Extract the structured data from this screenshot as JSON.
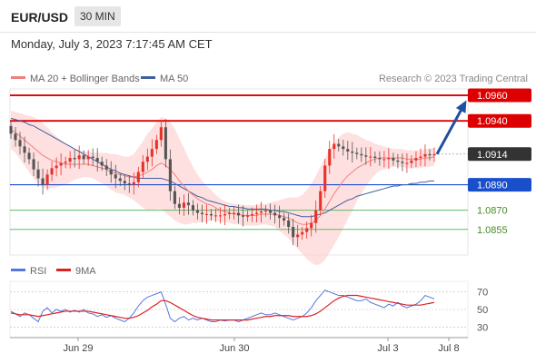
{
  "header": {
    "pair": "EUR/USD",
    "interval": "30 MIN",
    "datetime": "Monday, July 3, 2023 7:17:45 AM CET"
  },
  "legend": {
    "ma20": "MA 20 + Bollinger Bands",
    "ma50": "MA 50",
    "credit": "Research © 2023 Trading Central"
  },
  "colors": {
    "bull": "#e8312a",
    "bear": "#555555",
    "resistance": "#dd0000",
    "support_strong": "#1a4fcc",
    "support_weak": "#4caf50",
    "ma20": "#f08080",
    "ma50": "#4060a0",
    "bands": "#fdd6d6",
    "arrow": "#1f4fa0",
    "rsi": "#5577dd",
    "rsi_ma": "#dd2222"
  },
  "chart_data": [
    {
      "type": "candlestick",
      "x_axis": [
        "Jun 29",
        "Jun 30",
        "Jul 3",
        "Jul 8"
      ],
      "y_range": [
        1.0835,
        1.0965
      ],
      "current_price": "1.0914",
      "levels": [
        {
          "label": "1.0960",
          "value": 1.096,
          "kind": "resistance"
        },
        {
          "label": "1.0940",
          "value": 1.094,
          "kind": "resistance"
        },
        {
          "label": "1.0890",
          "value": 1.089,
          "kind": "support_strong"
        },
        {
          "label": "1.0870",
          "value": 1.087,
          "kind": "support_weak"
        },
        {
          "label": "1.0855",
          "value": 1.0855,
          "kind": "support_weak"
        }
      ],
      "closes": [
        1.093,
        1.0925,
        1.092,
        1.0915,
        1.091,
        1.0902,
        1.0895,
        1.089,
        1.0898,
        1.0903,
        1.0905,
        1.0907,
        1.0908,
        1.0911,
        1.091,
        1.0913,
        1.091,
        1.0912,
        1.0911,
        1.0908,
        1.0905,
        1.0902,
        1.0898,
        1.0895,
        1.0893,
        1.0891,
        1.089,
        1.0892,
        1.09,
        1.0908,
        1.0912,
        1.0918,
        1.0925,
        1.0935,
        1.091,
        1.0885,
        1.0875,
        1.0872,
        1.0876,
        1.0874,
        1.087,
        1.0868,
        1.0867,
        1.0867,
        1.0866,
        1.0866,
        1.0866,
        1.0867,
        1.0868,
        1.0868,
        1.0866,
        1.0865,
        1.0866,
        1.0867,
        1.0868,
        1.0869,
        1.087,
        1.0868,
        1.0866,
        1.0864,
        1.0862,
        1.0857,
        1.0849,
        1.0851,
        1.0853,
        1.0856,
        1.086,
        1.087,
        1.0885,
        1.0905,
        1.0918,
        1.0922,
        1.092,
        1.0918,
        1.0916,
        1.0915,
        1.0914,
        1.0913,
        1.0912,
        1.0912,
        1.0911,
        1.091,
        1.091,
        1.0911,
        1.0909,
        1.0908,
        1.0907,
        1.0907,
        1.0909,
        1.0911,
        1.0912,
        1.0914,
        1.0913,
        1.0914
      ],
      "ma20": [
        1.0933,
        1.0931,
        1.0928,
        1.0925,
        1.0922,
        1.0919,
        1.0916,
        1.0913,
        1.0911,
        1.0909,
        1.0908,
        1.0907,
        1.0906,
        1.0906,
        1.0906,
        1.0906,
        1.0906,
        1.0906,
        1.0905,
        1.0904,
        1.0903,
        1.0902,
        1.09,
        1.0899,
        1.0898,
        1.0897,
        1.0896,
        1.0896,
        1.0897,
        1.0898,
        1.09,
        1.0902,
        1.0905,
        1.0907,
        1.0905,
        1.0902,
        1.0898,
        1.0893,
        1.0889,
        1.0885,
        1.0882,
        1.0879,
        1.0877,
        1.0875,
        1.0874,
        1.0872,
        1.087,
        1.0869,
        1.0868,
        1.0867,
        1.0867,
        1.0866,
        1.0866,
        1.0866,
        1.0866,
        1.0867,
        1.0867,
        1.0867,
        1.0867,
        1.0866,
        1.0865,
        1.0864,
        1.0862,
        1.086,
        1.0859,
        1.0859,
        1.086,
        1.0862,
        1.0866,
        1.0871,
        1.0877,
        1.0883,
        1.0888,
        1.0893,
        1.0897,
        1.09,
        1.0903,
        1.0905,
        1.0907,
        1.0909,
        1.091,
        1.0911,
        1.0911,
        1.0911,
        1.0911,
        1.0911,
        1.0911,
        1.091,
        1.091,
        1.091,
        1.091,
        1.0911,
        1.0911,
        1.0912
      ],
      "ma50": [
        1.0942,
        1.0941,
        1.094,
        1.0939,
        1.0937,
        1.0936,
        1.0934,
        1.0932,
        1.093,
        1.0928,
        1.0926,
        1.0924,
        1.0922,
        1.092,
        1.0918,
        1.0916,
        1.0914,
        1.0912,
        1.091,
        1.0908,
        1.0906,
        1.0904,
        1.0902,
        1.0901,
        1.0899,
        1.0898,
        1.0897,
        1.0896,
        1.0895,
        1.0895,
        1.0895,
        1.0895,
        1.0895,
        1.0895,
        1.0894,
        1.0893,
        1.0891,
        1.0889,
        1.0887,
        1.0885,
        1.0883,
        1.0881,
        1.088,
        1.0878,
        1.0877,
        1.0876,
        1.0875,
        1.0874,
        1.0873,
        1.0873,
        1.0872,
        1.0872,
        1.0871,
        1.0871,
        1.0871,
        1.0871,
        1.0871,
        1.087,
        1.087,
        1.0869,
        1.0869,
        1.0868,
        1.0867,
        1.0866,
        1.0865,
        1.0865,
        1.0865,
        1.0866,
        1.0867,
        1.0868,
        1.087,
        1.0872,
        1.0874,
        1.0876,
        1.0878,
        1.0879,
        1.0881,
        1.0882,
        1.0883,
        1.0884,
        1.0885,
        1.0886,
        1.0887,
        1.0888,
        1.0889,
        1.0889,
        1.089,
        1.089,
        1.0891,
        1.0891,
        1.0892,
        1.0892,
        1.0893,
        1.0893
      ],
      "band_width": [
        0.0015,
        0.0016,
        0.0018,
        0.002,
        0.0022,
        0.0024,
        0.0025,
        0.0025,
        0.0024,
        0.0022,
        0.002,
        0.0018,
        0.0016,
        0.0014,
        0.0012,
        0.0011,
        0.001,
        0.001,
        0.001,
        0.0011,
        0.0012,
        0.0013,
        0.0014,
        0.0015,
        0.0015,
        0.0015,
        0.0016,
        0.0018,
        0.0022,
        0.0026,
        0.003,
        0.0032,
        0.0034,
        0.0036,
        0.0037,
        0.0037,
        0.0036,
        0.0033,
        0.003,
        0.0026,
        0.0022,
        0.0019,
        0.0016,
        0.0014,
        0.0012,
        0.001,
        0.0009,
        0.0008,
        0.0008,
        0.0008,
        0.0008,
        0.0008,
        0.0008,
        0.0008,
        0.0008,
        0.0008,
        0.0008,
        0.0009,
        0.001,
        0.0012,
        0.0014,
        0.0016,
        0.0018,
        0.002,
        0.0023,
        0.0027,
        0.0031,
        0.0035,
        0.0038,
        0.004,
        0.004,
        0.004,
        0.0039,
        0.0037,
        0.0034,
        0.003,
        0.0026,
        0.0022,
        0.0018,
        0.0015,
        0.0012,
        0.001,
        0.0009,
        0.0008,
        0.0007,
        0.0007,
        0.0007,
        0.0007,
        0.0007,
        0.0007,
        0.0007,
        0.0007,
        0.0007,
        0.0007
      ]
    },
    {
      "type": "line",
      "legend": [
        "RSI",
        "9MA"
      ],
      "y_ticks": [
        70,
        50,
        30
      ],
      "y_range": [
        20,
        80
      ],
      "rsi": [
        48,
        45,
        42,
        46,
        44,
        40,
        36,
        48,
        52,
        46,
        50,
        48,
        50,
        47,
        49,
        47,
        50,
        46,
        45,
        42,
        44,
        41,
        43,
        40,
        38,
        36,
        40,
        46,
        54,
        60,
        64,
        66,
        68,
        70,
        56,
        40,
        36,
        40,
        42,
        38,
        40,
        38,
        40,
        38,
        36,
        36,
        38,
        37,
        38,
        38,
        36,
        38,
        40,
        42,
        44,
        46,
        44,
        44,
        46,
        44,
        42,
        40,
        38,
        40,
        42,
        46,
        52,
        60,
        66,
        72,
        70,
        68,
        66,
        66,
        64,
        62,
        60,
        60,
        62,
        58,
        56,
        54,
        52,
        56,
        54,
        58,
        54,
        52,
        54,
        56,
        60,
        66,
        64,
        62
      ],
      "ma": [
        46,
        45,
        44,
        44,
        44,
        43,
        42,
        43,
        44,
        45,
        46,
        47,
        48,
        48,
        48,
        48,
        48,
        48,
        47,
        46,
        45,
        44,
        43,
        42,
        41,
        40,
        40,
        41,
        43,
        46,
        49,
        53,
        56,
        60,
        60,
        58,
        55,
        52,
        49,
        46,
        43,
        41,
        40,
        39,
        38,
        38,
        38,
        38,
        38,
        38,
        38,
        38,
        38,
        39,
        40,
        41,
        42,
        42,
        43,
        43,
        43,
        43,
        42,
        42,
        42,
        42,
        43,
        45,
        48,
        52,
        56,
        60,
        63,
        65,
        66,
        66,
        66,
        65,
        64,
        63,
        62,
        61,
        60,
        59,
        58,
        57,
        56,
        55,
        55,
        55,
        55,
        56,
        57,
        58
      ]
    }
  ]
}
